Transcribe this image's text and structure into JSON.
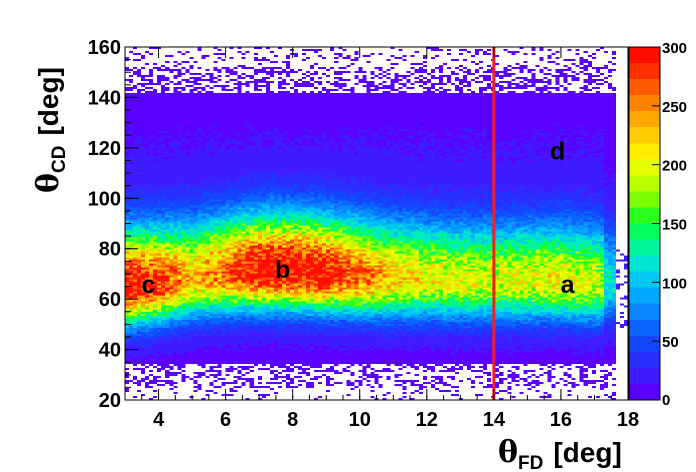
{
  "chart_data": {
    "type": "heatmap",
    "title": "",
    "xlabel": {
      "symbol": "θ",
      "subscript": "FD",
      "unit": "[deg]"
    },
    "ylabel": {
      "symbol": "θ",
      "subscript": "CD",
      "unit": "[deg]"
    },
    "xlim": [
      3,
      18
    ],
    "ylim": [
      20,
      160
    ],
    "x_ticks": [
      "4",
      "6",
      "8",
      "10",
      "12",
      "14",
      "16",
      "18"
    ],
    "y_ticks": [
      "20",
      "40",
      "60",
      "80",
      "100",
      "120",
      "140",
      "160"
    ],
    "colorbar": {
      "range": [
        0,
        300
      ],
      "ticks": [
        "0",
        "50",
        "100",
        "150",
        "200",
        "250",
        "300"
      ]
    },
    "vertical_line": {
      "x": 14,
      "color": "#ff1a1a"
    },
    "band_ridge": {
      "x": [
        3,
        4,
        5,
        6,
        7,
        8,
        9,
        10,
        11,
        12,
        13,
        14,
        15,
        16,
        17,
        17.6
      ],
      "theta_cd": [
        65,
        66,
        68,
        70,
        71,
        71,
        70,
        69,
        68,
        68,
        67,
        67,
        67,
        67,
        66,
        66
      ],
      "peak_counts": [
        300,
        270,
        210,
        250,
        300,
        300,
        290,
        250,
        210,
        190,
        185,
        180,
        185,
        190,
        180,
        150
      ]
    },
    "regions": [
      {
        "label": "a",
        "x": 16.2,
        "y": 66
      },
      {
        "label": "b",
        "x": 7.7,
        "y": 72
      },
      {
        "label": "c",
        "x": 3.7,
        "y": 66
      },
      {
        "label": "d",
        "x": 15.9,
        "y": 119
      }
    ]
  }
}
